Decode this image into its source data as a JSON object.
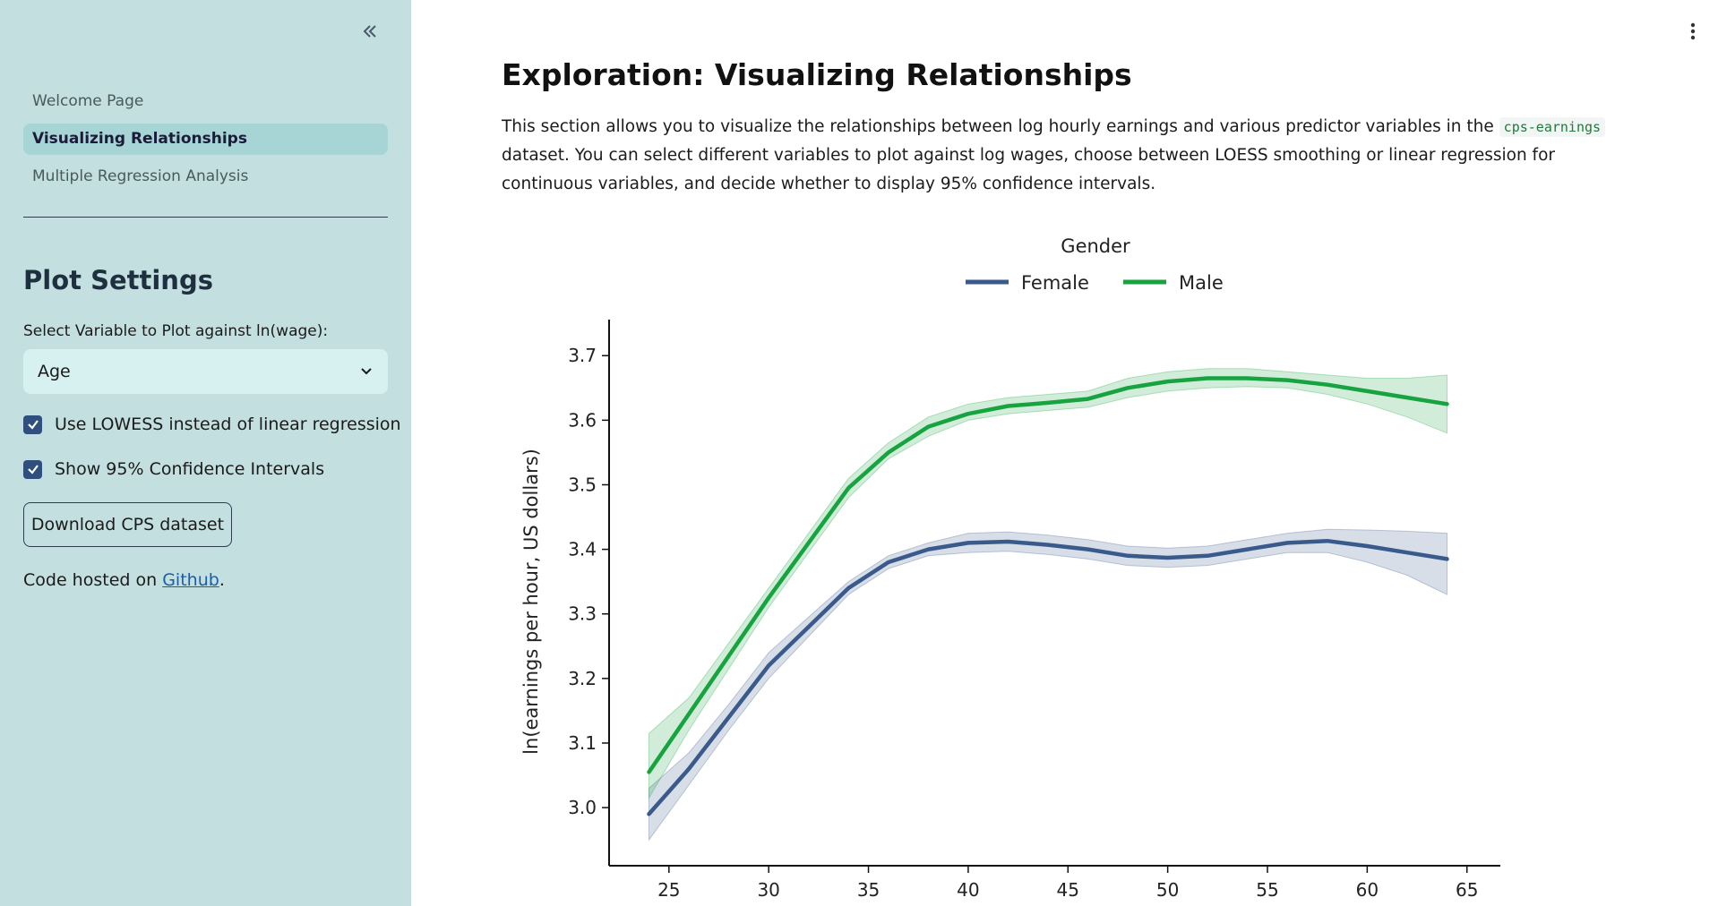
{
  "sidebar": {
    "nav_items": [
      {
        "label": "Welcome Page",
        "active": false
      },
      {
        "label": "Visualizing Relationships",
        "active": true
      },
      {
        "label": "Multiple Regression Analysis",
        "active": false
      }
    ],
    "settings_title": "Plot Settings",
    "select_label": "Select Variable to Plot against ln(wage):",
    "select_value": "Age",
    "checkbox_lowess": "Use LOWESS instead of linear regression",
    "checkbox_ci": "Show 95% Confidence Intervals",
    "download_label": "Download CPS dataset",
    "code_note_prefix": "Code hosted on ",
    "code_note_link": "Github",
    "code_note_suffix": "."
  },
  "main": {
    "title": "Exploration: Visualizing Relationships",
    "intro_part1": "This section allows you to visualize the relationships between log hourly earnings and various predictor variables in the ",
    "intro_code": "cps-earnings",
    "intro_part2": " dataset. You can select different variables to plot against log wages, choose between LOESS smoothing or linear regression for continuous variables, and decide whether to display 95% confidence intervals."
  },
  "colors": {
    "sidebar_bg": "#c3dfdf",
    "female": "#3a5a8c",
    "male": "#17a33f"
  },
  "chart_data": {
    "type": "line",
    "legend_title": "Gender",
    "legend_placement": "top-center",
    "xlabel": "",
    "ylabel": "ln(earnings per hour, US dollars)",
    "xlim": [
      22,
      66
    ],
    "ylim": [
      2.91,
      3.735
    ],
    "xticks": [
      25,
      30,
      35,
      40,
      45,
      50,
      55,
      60,
      65
    ],
    "yticks": [
      3.0,
      3.1,
      3.2,
      3.3,
      3.4,
      3.5,
      3.6,
      3.7
    ],
    "x": [
      24,
      26,
      28,
      30,
      32,
      34,
      36,
      38,
      40,
      42,
      44,
      46,
      48,
      50,
      52,
      54,
      56,
      58,
      60,
      62,
      64
    ],
    "series": [
      {
        "name": "Female",
        "values": [
          2.99,
          3.06,
          3.14,
          3.22,
          3.28,
          3.34,
          3.38,
          3.4,
          3.41,
          3.412,
          3.407,
          3.4,
          3.39,
          3.387,
          3.39,
          3.4,
          3.41,
          3.413,
          3.405,
          3.395,
          3.385
        ],
        "ci_lower": [
          2.95,
          3.035,
          3.12,
          3.2,
          3.265,
          3.33,
          3.37,
          3.39,
          3.395,
          3.397,
          3.392,
          3.385,
          3.375,
          3.372,
          3.375,
          3.385,
          3.395,
          3.395,
          3.38,
          3.36,
          3.33
        ],
        "ci_upper": [
          3.03,
          3.085,
          3.16,
          3.24,
          3.295,
          3.35,
          3.39,
          3.41,
          3.425,
          3.427,
          3.422,
          3.415,
          3.405,
          3.402,
          3.405,
          3.415,
          3.425,
          3.431,
          3.43,
          3.428,
          3.425
        ]
      },
      {
        "name": "Male",
        "values": [
          3.055,
          3.145,
          3.235,
          3.325,
          3.41,
          3.495,
          3.55,
          3.59,
          3.61,
          3.622,
          3.627,
          3.633,
          3.65,
          3.66,
          3.665,
          3.665,
          3.662,
          3.655,
          3.645,
          3.635,
          3.625
        ],
        "ci_lower": [
          3.015,
          3.12,
          3.215,
          3.31,
          3.395,
          3.48,
          3.54,
          3.575,
          3.6,
          3.61,
          3.615,
          3.62,
          3.635,
          3.645,
          3.65,
          3.652,
          3.65,
          3.64,
          3.625,
          3.605,
          3.58
        ],
        "ci_upper": [
          3.115,
          3.17,
          3.255,
          3.34,
          3.425,
          3.51,
          3.565,
          3.605,
          3.625,
          3.635,
          3.64,
          3.645,
          3.665,
          3.675,
          3.68,
          3.68,
          3.675,
          3.67,
          3.665,
          3.665,
          3.67
        ]
      }
    ]
  }
}
